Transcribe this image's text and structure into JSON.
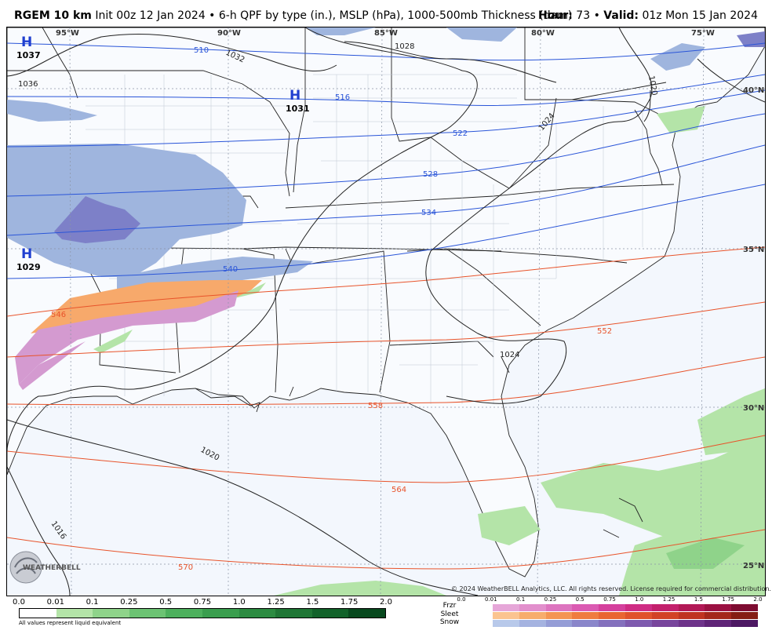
{
  "header": {
    "model": "RGEM 10 km",
    "description": "Init 00z 12 Jan 2024 • 6-h QPF by type (in.), MSLP (hPa), 1000-500mb Thickness (dam)",
    "hour_label": "Hour:",
    "hour_value": "73",
    "separator": "•",
    "valid_label": "Valid:",
    "valid_value": "01z Mon 15 Jan 2024"
  },
  "map": {
    "longitude_labels": [
      "95°W",
      "90°W",
      "85°W",
      "80°W",
      "75°W"
    ],
    "latitude_labels": [
      "40°N",
      "35°N",
      "30°N",
      "25°N"
    ],
    "pressure_centers": [
      {
        "letter": "H",
        "value": "1037"
      },
      {
        "letter": "H",
        "value": "1031"
      },
      {
        "letter": "H",
        "value": "1029"
      }
    ],
    "isobar_labels": [
      "1032",
      "1028",
      "1036",
      "1024",
      "1020",
      "1024",
      "1020",
      "1016"
    ],
    "thickness_labels_blue": [
      "510",
      "516",
      "522",
      "528",
      "534",
      "540"
    ],
    "thickness_labels_red": [
      "546",
      "552",
      "558",
      "564",
      "570"
    ],
    "colors": {
      "ocean": "#f3f7fd",
      "rain_light": "#b4e4a8",
      "snow": "#9fb5de",
      "snow_heavy": "#7d80c8",
      "sleet": "#f7a96b",
      "freezing_rain": "#d49ad0",
      "thickness_cold": "#2a55d8",
      "thickness_warm": "#e8532a"
    }
  },
  "logo_text": "WEATHERBELL",
  "copyright": "© 2024 WeatherBELL Analytics, LLC. All rights reserved. License required for commercial distribution.",
  "legend_qpf": {
    "ticks": [
      "0.0",
      "0.01",
      "0.1",
      "0.25",
      "0.5",
      "0.75",
      "1.0",
      "1.25",
      "1.5",
      "1.75",
      "2.0"
    ],
    "note": "All values represent liquid equivalent",
    "colors": [
      "#ffffff",
      "#b4e4a8",
      "#8fd38a",
      "#6cc373",
      "#4db05d",
      "#3a9e4e",
      "#2c8b41",
      "#1f7635",
      "#12622a",
      "#08491e"
    ]
  },
  "legend_ptype": {
    "labels": [
      "Frzr",
      "Sleet",
      "Snow"
    ],
    "ticks": [
      "0.0",
      "0.01",
      "0.1",
      "0.25",
      "0.5",
      "0.75",
      "1.0",
      "1.25",
      "1.5",
      "1.75",
      "2.0"
    ],
    "frzr_colors": [
      "#e6a6d8",
      "#e28fcc",
      "#dd74bf",
      "#db5ab2",
      "#d5409d",
      "#cf2c84",
      "#c3206c",
      "#b21856",
      "#9b1142",
      "#7e0c31"
    ],
    "sleet_colors": [
      "#fbc490",
      "#f7ad6c",
      "#f49552",
      "#ef7c3f",
      "#e96632",
      "#e0522b",
      "#d24226",
      "#bf3421",
      "#a4281b",
      "#851d14"
    ],
    "snow_colors": [
      "#b8c9ea",
      "#a5b3e0",
      "#959dd6",
      "#8a86ca",
      "#8470bd",
      "#7e5aae",
      "#78459c",
      "#6e338a",
      "#5f2477",
      "#4d1863"
    ]
  }
}
